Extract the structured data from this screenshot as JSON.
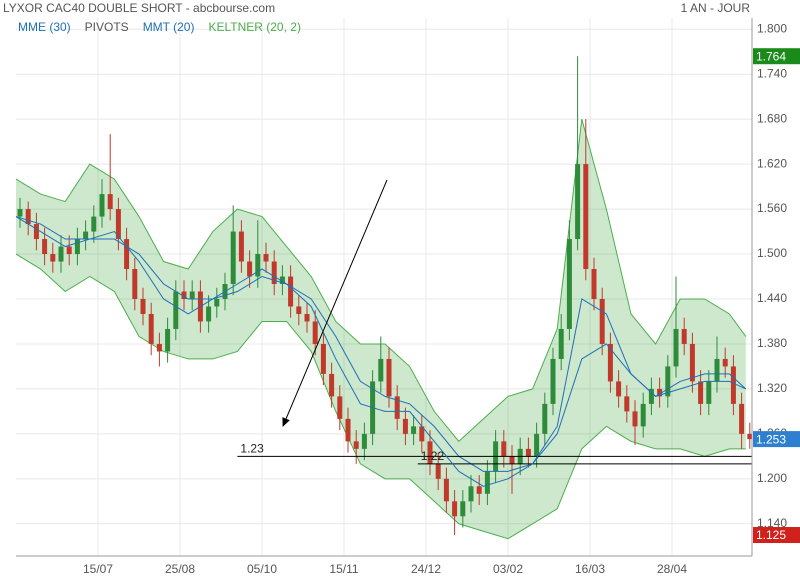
{
  "chart_data": {
    "type": "candlestick",
    "title": "LYXOR CAC40 DOUBLE SHORT - abcbourse.com",
    "period": "1 AN - JOUR",
    "up_color": "#2e8b3a",
    "down_color": "#c0392b",
    "xlim": [
      0,
      90
    ],
    "ylim": [
      1.097,
      1.815
    ],
    "xticks": [
      {
        "value": 10,
        "label": "15/07"
      },
      {
        "value": 20,
        "label": "25/08"
      },
      {
        "value": 30,
        "label": "05/10"
      },
      {
        "value": 40,
        "label": "15/11"
      },
      {
        "value": 50,
        "label": "24/12"
      },
      {
        "value": 60,
        "label": "03/02"
      },
      {
        "value": 70,
        "label": "16/03"
      },
      {
        "value": 80,
        "label": "28/04"
      }
    ],
    "yticks": [
      {
        "value": 1.14,
        "label": "1.140"
      },
      {
        "value": 1.2,
        "label": "1.200"
      },
      {
        "value": 1.26,
        "label": "1.260"
      },
      {
        "value": 1.32,
        "label": "1.320"
      },
      {
        "value": 1.38,
        "label": "1.380"
      },
      {
        "value": 1.44,
        "label": "1.440"
      },
      {
        "value": 1.5,
        "label": "1.500"
      },
      {
        "value": 1.56,
        "label": "1.560"
      },
      {
        "value": 1.62,
        "label": "1.620"
      },
      {
        "value": 1.68,
        "label": "1.680"
      },
      {
        "value": 1.74,
        "label": "1.740"
      },
      {
        "value": 1.8,
        "label": "1.800"
      }
    ],
    "grid": true,
    "open": [
      1.55,
      1.56,
      1.54,
      1.52,
      1.5,
      1.49,
      1.51,
      1.5,
      1.52,
      1.53,
      1.55,
      1.58,
      1.56,
      1.52,
      1.48,
      1.44,
      1.42,
      1.38,
      1.37,
      1.4,
      1.45,
      1.44,
      1.45,
      1.41,
      1.43,
      1.44,
      1.46,
      1.53,
      1.49,
      1.47,
      1.5,
      1.49,
      1.46,
      1.47,
      1.43,
      1.42,
      1.41,
      1.38,
      1.34,
      1.31,
      1.28,
      1.25,
      1.24,
      1.26,
      1.33,
      1.36,
      1.31,
      1.28,
      1.26,
      1.27,
      1.25,
      1.22,
      1.2,
      1.17,
      1.15,
      1.17,
      1.19,
      1.18,
      1.21,
      1.25,
      1.23,
      1.22,
      1.24,
      1.23,
      1.26,
      1.3,
      1.36,
      1.4,
      1.52,
      1.62,
      1.48,
      1.44,
      1.38,
      1.33,
      1.31,
      1.29,
      1.27,
      1.3,
      1.32,
      1.31,
      1.35,
      1.4,
      1.38,
      1.33,
      1.3,
      1.33,
      1.36,
      1.35,
      1.3,
      1.26
    ],
    "high": [
      1.575,
      1.57,
      1.555,
      1.535,
      1.515,
      1.525,
      1.525,
      1.535,
      1.545,
      1.565,
      1.6,
      1.66,
      1.575,
      1.535,
      1.495,
      1.455,
      1.435,
      1.395,
      1.415,
      1.465,
      1.465,
      1.465,
      1.465,
      1.445,
      1.455,
      1.475,
      1.565,
      1.545,
      1.505,
      1.545,
      1.515,
      1.505,
      1.485,
      1.485,
      1.445,
      1.435,
      1.425,
      1.395,
      1.355,
      1.325,
      1.295,
      1.265,
      1.275,
      1.345,
      1.39,
      1.375,
      1.325,
      1.295,
      1.285,
      1.285,
      1.265,
      1.235,
      1.215,
      1.185,
      1.185,
      1.205,
      1.205,
      1.225,
      1.265,
      1.265,
      1.245,
      1.255,
      1.255,
      1.275,
      1.315,
      1.375,
      1.42,
      1.545,
      1.764,
      1.68,
      1.495,
      1.455,
      1.395,
      1.345,
      1.325,
      1.305,
      1.315,
      1.335,
      1.335,
      1.365,
      1.47,
      1.415,
      1.395,
      1.345,
      1.345,
      1.39,
      1.375,
      1.365,
      1.315,
      1.275
    ],
    "low": [
      1.535,
      1.525,
      1.505,
      1.485,
      1.475,
      1.475,
      1.485,
      1.485,
      1.505,
      1.515,
      1.535,
      1.545,
      1.505,
      1.465,
      1.425,
      1.405,
      1.365,
      1.35,
      1.355,
      1.385,
      1.425,
      1.425,
      1.395,
      1.395,
      1.415,
      1.425,
      1.445,
      1.475,
      1.455,
      1.455,
      1.475,
      1.445,
      1.445,
      1.415,
      1.405,
      1.395,
      1.365,
      1.325,
      1.295,
      1.265,
      1.235,
      1.22,
      1.225,
      1.245,
      1.315,
      1.295,
      1.265,
      1.245,
      1.245,
      1.235,
      1.205,
      1.185,
      1.155,
      1.125,
      1.135,
      1.155,
      1.165,
      1.165,
      1.195,
      1.215,
      1.18,
      1.205,
      1.215,
      1.215,
      1.245,
      1.285,
      1.345,
      1.385,
      1.505,
      1.465,
      1.425,
      1.365,
      1.315,
      1.295,
      1.275,
      1.245,
      1.255,
      1.285,
      1.295,
      1.295,
      1.335,
      1.365,
      1.315,
      1.285,
      1.285,
      1.315,
      1.335,
      1.285,
      1.24,
      1.24
    ],
    "close": [
      1.56,
      1.54,
      1.52,
      1.5,
      1.49,
      1.51,
      1.5,
      1.52,
      1.53,
      1.55,
      1.58,
      1.56,
      1.52,
      1.48,
      1.44,
      1.42,
      1.38,
      1.37,
      1.4,
      1.45,
      1.44,
      1.45,
      1.41,
      1.43,
      1.44,
      1.46,
      1.53,
      1.49,
      1.47,
      1.5,
      1.49,
      1.46,
      1.47,
      1.43,
      1.42,
      1.41,
      1.38,
      1.34,
      1.31,
      1.28,
      1.25,
      1.24,
      1.26,
      1.33,
      1.36,
      1.31,
      1.28,
      1.26,
      1.27,
      1.25,
      1.22,
      1.2,
      1.17,
      1.15,
      1.17,
      1.19,
      1.18,
      1.21,
      1.25,
      1.23,
      1.22,
      1.24,
      1.23,
      1.26,
      1.3,
      1.36,
      1.4,
      1.52,
      1.62,
      1.48,
      1.44,
      1.38,
      1.33,
      1.31,
      1.29,
      1.27,
      1.3,
      1.32,
      1.31,
      1.35,
      1.4,
      1.38,
      1.33,
      1.3,
      1.33,
      1.36,
      1.35,
      1.3,
      1.26,
      1.253
    ],
    "indicator_x": [
      0,
      3,
      6,
      9,
      12,
      15,
      18,
      21,
      24,
      27,
      30,
      33,
      36,
      39,
      42,
      45,
      48,
      51,
      54,
      57,
      60,
      63,
      66,
      69,
      72,
      75,
      78,
      81,
      84,
      87,
      89
    ],
    "series": [
      {
        "name": "MME (30)",
        "color": "#1f6fb5",
        "values": [
          1.55,
          1.54,
          1.52,
          1.52,
          1.52,
          1.5,
          1.46,
          1.44,
          1.44,
          1.45,
          1.47,
          1.46,
          1.44,
          1.39,
          1.33,
          1.31,
          1.3,
          1.27,
          1.23,
          1.21,
          1.21,
          1.22,
          1.26,
          1.36,
          1.38,
          1.34,
          1.31,
          1.32,
          1.33,
          1.33,
          1.32
        ]
      },
      {
        "name": "PIVOTS",
        "color": "#555555",
        "x": [
          27,
          49
        ],
        "values": [
          1.23,
          1.22
        ]
      },
      {
        "name": "MMT (20)",
        "color": "#1f6fb5",
        "values": [
          1.55,
          1.53,
          1.51,
          1.52,
          1.53,
          1.49,
          1.44,
          1.42,
          1.44,
          1.46,
          1.48,
          1.46,
          1.43,
          1.36,
          1.3,
          1.29,
          1.29,
          1.25,
          1.21,
          1.19,
          1.2,
          1.22,
          1.27,
          1.44,
          1.42,
          1.34,
          1.31,
          1.33,
          1.34,
          1.34,
          1.32
        ]
      },
      {
        "name": "KELTNER (20, 2)",
        "color": "#4cae4c",
        "upper": [
          1.6,
          1.58,
          1.57,
          1.62,
          1.6,
          1.55,
          1.49,
          1.48,
          1.53,
          1.56,
          1.55,
          1.51,
          1.47,
          1.41,
          1.38,
          1.38,
          1.35,
          1.29,
          1.25,
          1.28,
          1.31,
          1.32,
          1.4,
          1.68,
          1.56,
          1.42,
          1.38,
          1.44,
          1.44,
          1.42,
          1.39
        ],
        "lower": [
          1.5,
          1.48,
          1.45,
          1.47,
          1.45,
          1.39,
          1.37,
          1.36,
          1.36,
          1.37,
          1.41,
          1.41,
          1.37,
          1.29,
          1.22,
          1.2,
          1.2,
          1.17,
          1.14,
          1.13,
          1.12,
          1.14,
          1.16,
          1.24,
          1.27,
          1.25,
          1.24,
          1.24,
          1.23,
          1.24,
          1.24
        ]
      }
    ],
    "price_tags": [
      {
        "value": 1.764,
        "color": "#1a8a1a"
      },
      {
        "value": 1.253,
        "color": "#2f7fd0"
      },
      {
        "value": 1.125,
        "color": "#d0211c"
      }
    ]
  }
}
